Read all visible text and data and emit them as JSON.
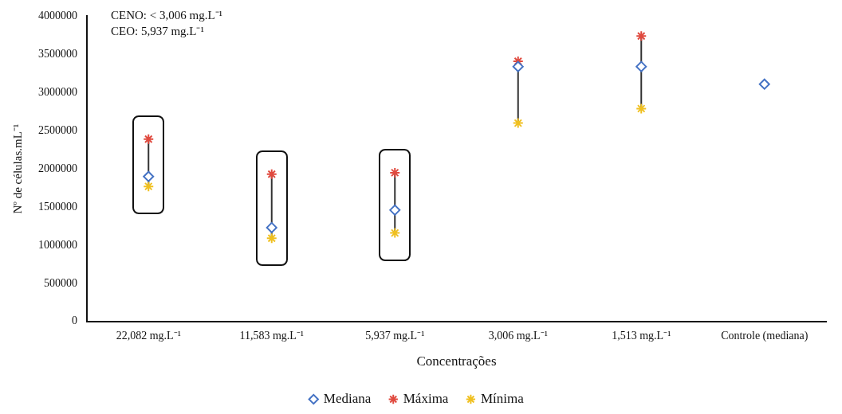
{
  "chart_data": {
    "type": "scatter",
    "xlabel": "Concentrações",
    "ylabel": "Nº de células.mL⁻¹",
    "categories": [
      "22,082 mg.L⁻¹",
      "11,583 mg.L⁻¹",
      "5,937 mg.L⁻¹",
      "3,006 mg.L⁻¹",
      "1,513 mg.L⁻¹",
      "Controle (mediana)"
    ],
    "series": [
      {
        "name": "Mediana",
        "color": "#4472c4",
        "marker": "diamond",
        "values": [
          1900000,
          1230000,
          1460000,
          3340000,
          3340000,
          3110000
        ]
      },
      {
        "name": "Máxima",
        "color": "#e04a3f",
        "marker": "cross",
        "values": [
          2390000,
          1930000,
          1950000,
          3410000,
          3740000,
          null
        ]
      },
      {
        "name": "Mínima",
        "color": "#f0c020",
        "marker": "cross",
        "values": [
          1770000,
          1090000,
          1160000,
          2600000,
          2790000,
          null
        ]
      }
    ],
    "ylim": [
      0,
      4000000
    ],
    "yticks": [
      0,
      500000,
      1000000,
      1500000,
      2000000,
      2500000,
      3000000,
      3500000,
      4000000
    ],
    "grid": false,
    "legend": "bottom",
    "annotations": [
      "CENO: < 3,006 mg.L⁻¹",
      "CEO: 5,937 mg.L⁻¹"
    ]
  }
}
